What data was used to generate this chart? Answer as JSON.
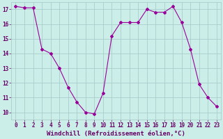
{
  "x": [
    0,
    1,
    2,
    3,
    4,
    5,
    6,
    7,
    8,
    9,
    10,
    11,
    12,
    13,
    14,
    15,
    16,
    17,
    18,
    19,
    20,
    21,
    22,
    23
  ],
  "y": [
    17.2,
    17.1,
    17.1,
    14.3,
    14.0,
    13.0,
    11.7,
    10.7,
    10.0,
    9.9,
    11.3,
    15.2,
    16.1,
    16.1,
    16.1,
    17.0,
    16.8,
    16.8,
    17.2,
    16.1,
    14.3,
    11.9,
    11.0,
    10.4
  ],
  "line_color": "#990099",
  "marker": "D",
  "marker_size": 2,
  "bg_color": "#cceee8",
  "grid_color": "#aacccc",
  "xlabel": "Windchill (Refroidissement éolien,°C)",
  "xlabel_color": "#660066",
  "xlabel_fontsize": 6.5,
  "tick_color": "#660066",
  "tick_fontsize": 5.5,
  "ylim": [
    9.5,
    17.5
  ],
  "yticks": [
    10,
    11,
    12,
    13,
    14,
    15,
    16,
    17
  ],
  "xlim": [
    -0.5,
    23.5
  ],
  "xticks": [
    0,
    1,
    2,
    3,
    4,
    5,
    6,
    7,
    8,
    9,
    10,
    11,
    12,
    13,
    14,
    15,
    16,
    17,
    18,
    19,
    20,
    21,
    22,
    23
  ]
}
